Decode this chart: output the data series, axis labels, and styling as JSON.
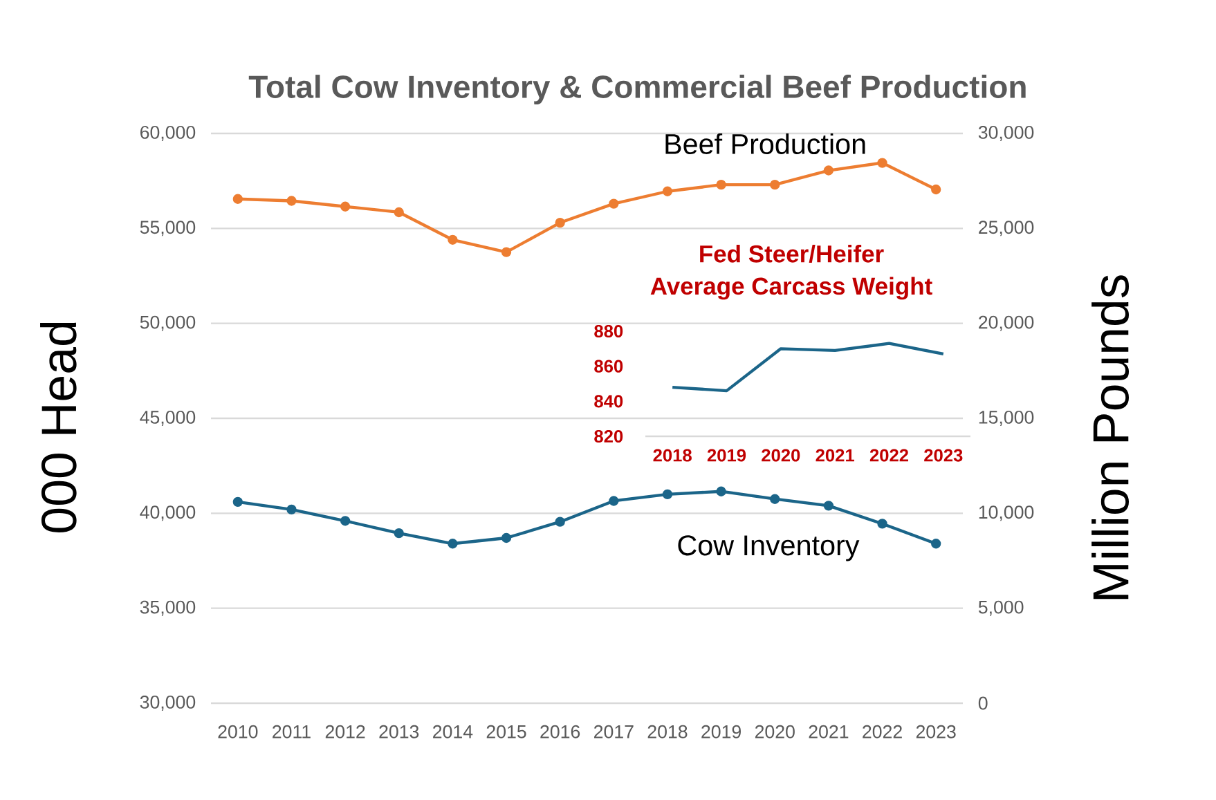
{
  "chart_data": [
    {
      "type": "line",
      "title": "Total Cow Inventory & Commercial Beef Production",
      "ylabel": "000 Head",
      "y2label": "Million Pounds",
      "categories": [
        "2010",
        "2011",
        "2012",
        "2013",
        "2014",
        "2015",
        "2016",
        "2017",
        "2018",
        "2019",
        "2020",
        "2021",
        "2022",
        "2023"
      ],
      "series": [
        {
          "name": "Cow Inventory",
          "color": "#1b6589",
          "values": [
            40600,
            40200,
            39600,
            38950,
            38400,
            38700,
            39550,
            40650,
            41000,
            41150,
            40750,
            40400,
            39450,
            38400
          ]
        },
        {
          "name": "Beef Production",
          "color": "#ed7d31",
          "axis": "y2",
          "values": [
            26550,
            26450,
            26150,
            25850,
            24400,
            23750,
            25300,
            26300,
            26950,
            27300,
            27300,
            28050,
            28450,
            27050
          ]
        }
      ],
      "ylim": [
        30000,
        60000
      ],
      "yticks": [
        {
          "value": 30000,
          "label": "30,000"
        },
        {
          "value": 35000,
          "label": "35,000"
        },
        {
          "value": 40000,
          "label": "40,000"
        },
        {
          "value": 45000,
          "label": "45,000"
        },
        {
          "value": 50000,
          "label": "50,000"
        },
        {
          "value": 55000,
          "label": "55,000"
        },
        {
          "value": 60000,
          "label": "60,000"
        }
      ],
      "y2lim": [
        0,
        30000
      ],
      "y2ticks": [
        0,
        {
          "value": 5000,
          "label": "5,000"
        },
        {
          "value": 10000,
          "label": "10,000"
        },
        {
          "value": 15000,
          "label": "15,000"
        },
        {
          "value": 20000,
          "label": "20,000"
        },
        {
          "value": 25000,
          "label": "25,000"
        },
        {
          "value": 30000,
          "label": "30,000"
        }
      ],
      "grid": "y",
      "marker": "circle"
    },
    {
      "type": "line",
      "title": "Fed Steer/Heifer",
      "subtitle": "Average Carcass Weight",
      "categories": [
        "2018",
        "2019",
        "2020",
        "2021",
        "2022",
        "2023"
      ],
      "series": [
        {
          "color": "#1b6589",
          "values": [
            848,
            846,
            870,
            869,
            873,
            867
          ]
        }
      ],
      "ylim": [
        820,
        880
      ],
      "yticks": [
        820,
        840,
        860,
        880
      ]
    }
  ]
}
